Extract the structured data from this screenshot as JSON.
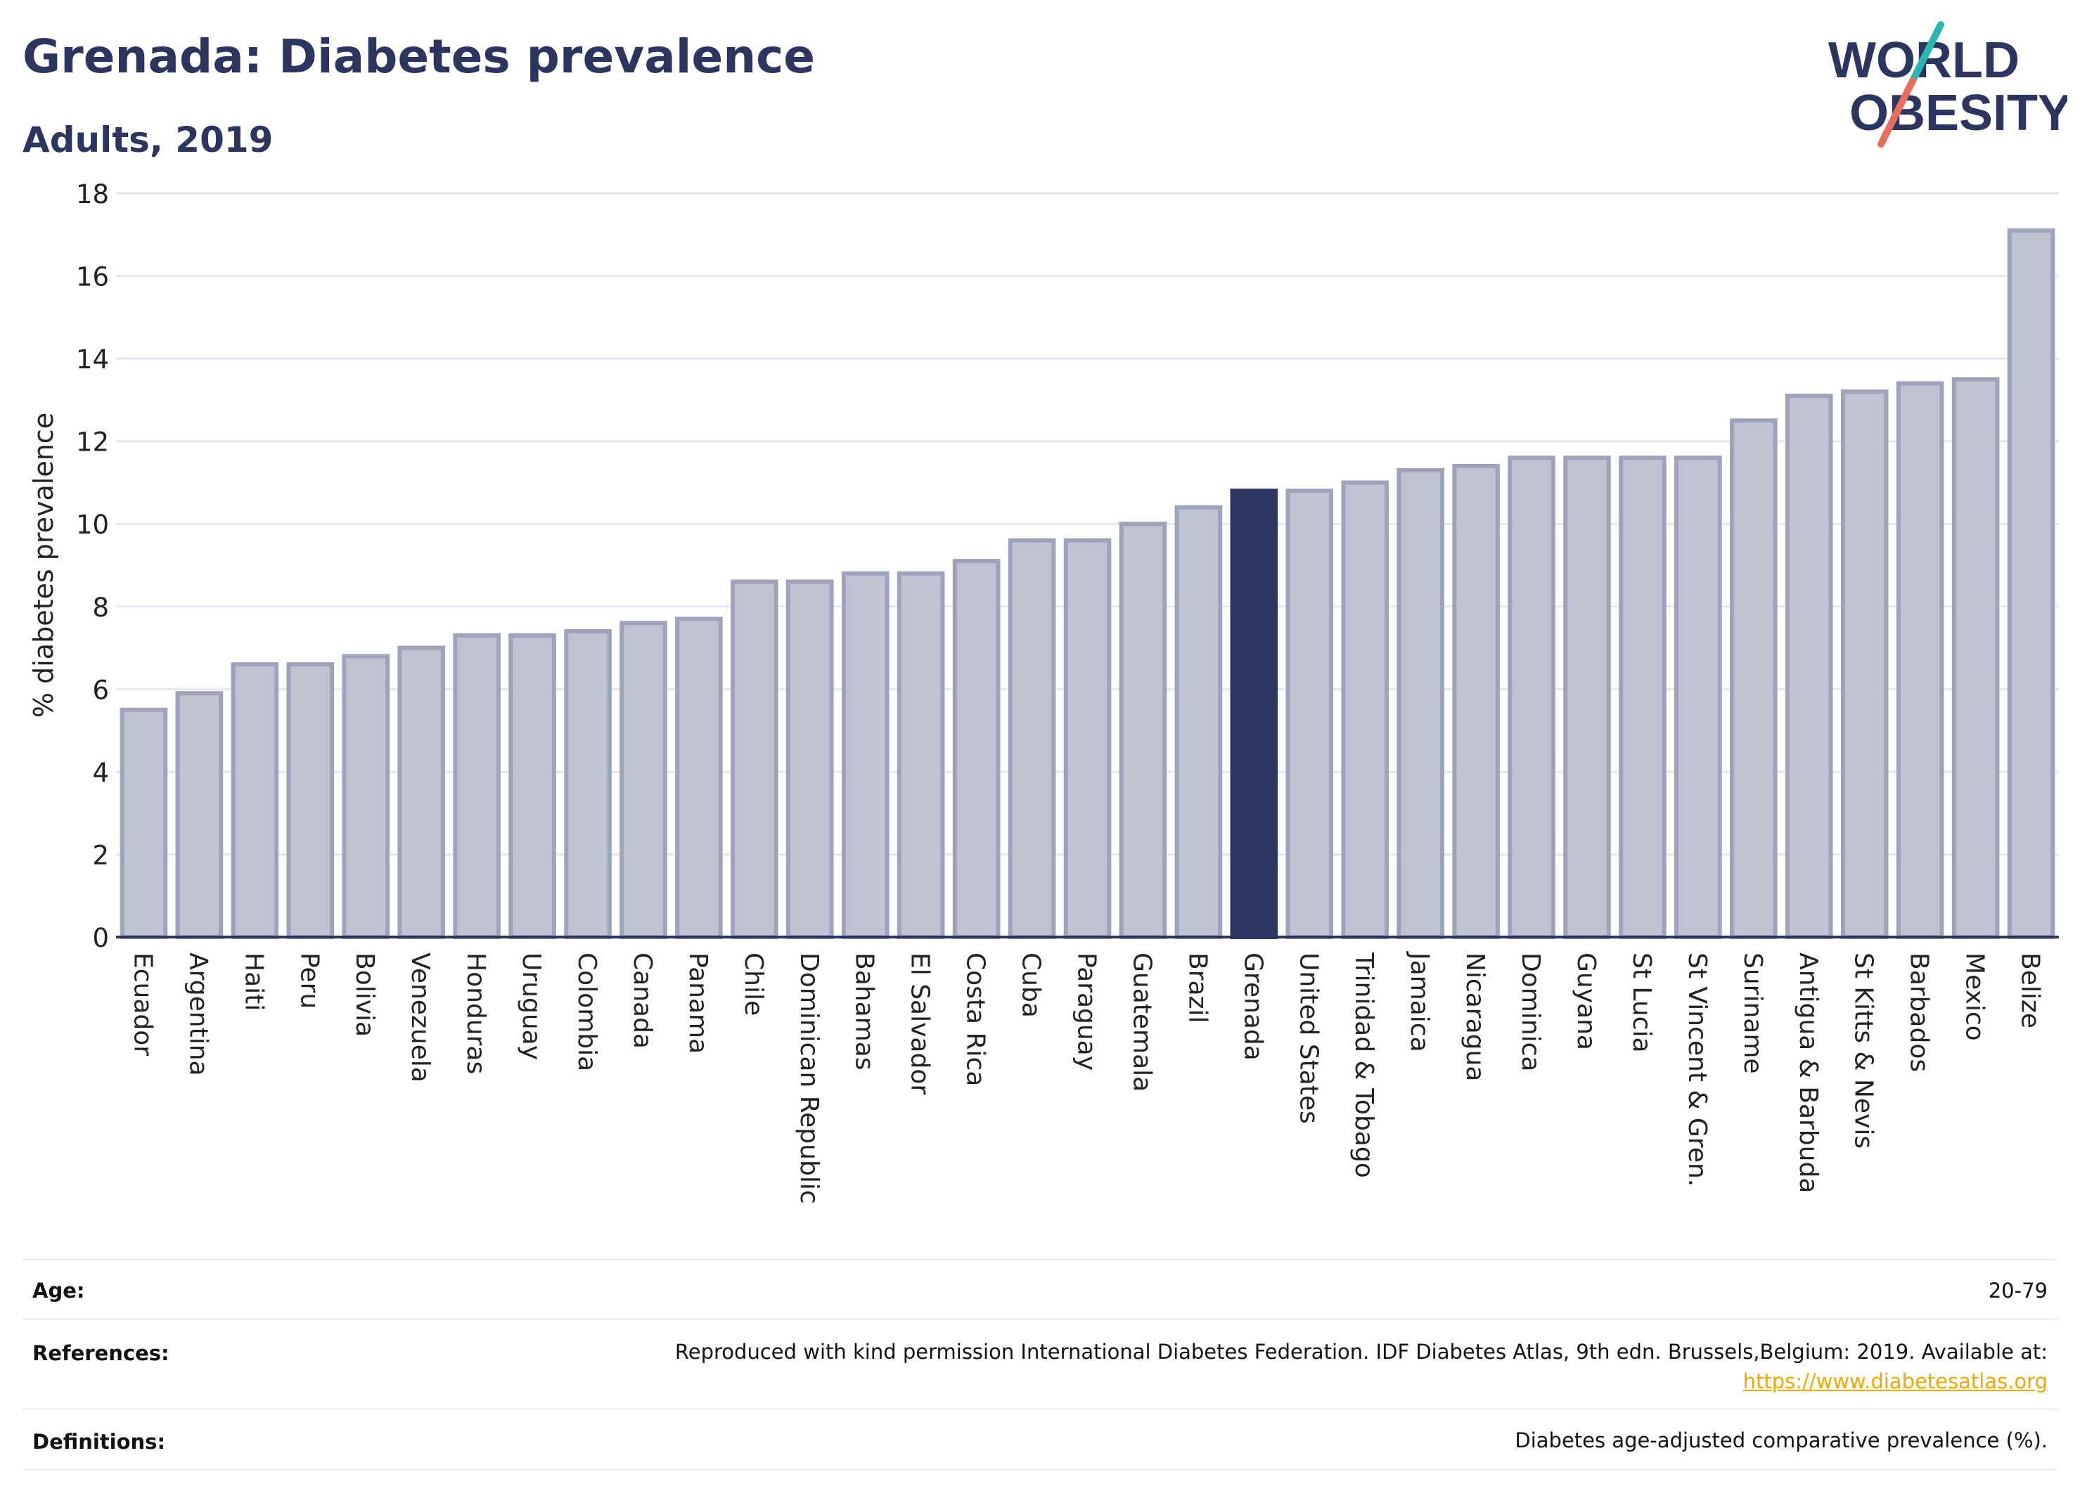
{
  "header": {
    "title": "Grenada: Diabetes prevalence",
    "subtitle": "Adults, 2019"
  },
  "logo": {
    "line1": "WORLD",
    "line2": "OBESITY"
  },
  "colors": {
    "highlight": "#2b3560",
    "bar_fill": "#bfc2d1",
    "bar_stroke": "#9ea3bb",
    "grid": "#e6e7ee",
    "title": "#2b3560",
    "logo_teal": "#2bb6b1",
    "logo_coral": "#e56f5c"
  },
  "chart_data": {
    "type": "bar",
    "categories": [
      "Ecuador",
      "Argentina",
      "Haiti",
      "Peru",
      "Bolivia",
      "Venezuela",
      "Honduras",
      "Uruguay",
      "Colombia",
      "Canada",
      "Panama",
      "Chile",
      "Dominican Republic",
      "Bahamas",
      "El Salvador",
      "Costa Rica",
      "Cuba",
      "Paraguay",
      "Guatemala",
      "Brazil",
      "Grenada",
      "United States",
      "Trinidad & Tobago",
      "Jamaica",
      "Nicaragua",
      "Dominica",
      "Guyana",
      "St Lucia",
      "St Vincent & Gren.",
      "Suriname",
      "Antigua & Barbuda",
      "St Kitts & Nevis",
      "Barbados",
      "Mexico",
      "Belize"
    ],
    "values": [
      5.5,
      5.9,
      6.6,
      6.6,
      6.8,
      7.0,
      7.3,
      7.3,
      7.4,
      7.6,
      7.7,
      8.6,
      8.6,
      8.8,
      8.8,
      9.1,
      9.6,
      9.6,
      10.0,
      10.4,
      10.8,
      10.8,
      11.0,
      11.3,
      11.4,
      11.6,
      11.6,
      11.6,
      11.6,
      12.5,
      13.1,
      13.2,
      13.4,
      13.5,
      17.1
    ],
    "highlight": "Grenada",
    "title": "Grenada: Diabetes prevalence",
    "subtitle": "Adults, 2019",
    "xlabel": "",
    "ylabel": "% diabetes prevalence",
    "ylim": [
      0,
      18
    ],
    "yticks": [
      0,
      2,
      4,
      6,
      8,
      10,
      12,
      14,
      16,
      18
    ],
    "grid": true,
    "legend": "none"
  },
  "info": {
    "age_label": "Age:",
    "age_value": "20-79",
    "refs_label": "References:",
    "refs_value": "Reproduced with kind permission International Diabetes Federation. IDF Diabetes Atlas, 9th edn. Brussels,Belgium: 2019. Available at:",
    "refs_link": "https://www.diabetesatlas.org",
    "defs_label": "Definitions:",
    "defs_value": "Diabetes age-adjusted comparative prevalence (%)."
  }
}
